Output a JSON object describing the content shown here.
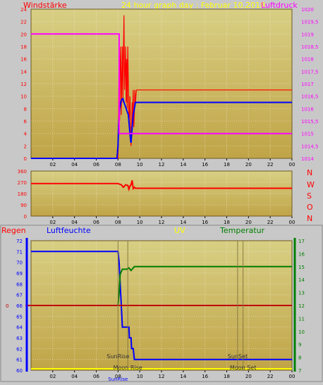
{
  "header": {
    "left_label": "Windstärke",
    "title": "24 hour graph day : Februar 10,2018",
    "right_label": "Luftdruck"
  },
  "direction_labels": [
    "N",
    "W",
    "S",
    "O",
    "N"
  ],
  "bottom_header": {
    "regen": "Regen",
    "luftfeuchte": "Luftfeuchte",
    "uv": "UV",
    "temperatur": "Temperatur"
  },
  "annotations": {
    "sunrise": "SunRise",
    "moonrise": "Moon Rise",
    "sunset": "SunSet",
    "moonset": "Moon Set",
    "sunrise_bottom": "SunRise"
  },
  "colors": {
    "panel_top": "#c0a447",
    "panel_bottom": "#d8cf84",
    "wind": "#ff0000",
    "gust": "#0000ff",
    "pressure": "#ff00ff",
    "direction": "#ff0000",
    "humidity": "#0000ff",
    "temperature": "#007f00",
    "rain": "#bf0000",
    "uv": "#ffff00"
  },
  "chart_data": [
    {
      "type": "line",
      "title": "24 hour graph day : Februar 10,2018",
      "xlabel": "",
      "xlim": [
        0,
        24
      ],
      "xticks": [
        "02",
        "04",
        "06",
        "08",
        "10",
        "12",
        "14",
        "16",
        "18",
        "20",
        "22",
        "00"
      ],
      "ylabel": "Windstärke",
      "ylim": [
        0,
        24
      ],
      "yticks": [
        "0",
        "2",
        "4",
        "6",
        "8",
        "10",
        "12",
        "14",
        "16",
        "18",
        "20",
        "22",
        "24"
      ],
      "y2label": "Luftdruck",
      "y2lim": [
        1014,
        1020
      ],
      "y2ticks": [
        "1014",
        "1014,5",
        "1015",
        "1015,5",
        "1016",
        "1016,5",
        "1017",
        "1017,5",
        "1018",
        "1018,5",
        "1019",
        "1019,5",
        "1020"
      ],
      "series": [
        {
          "axis": "left",
          "color": "#ff0000",
          "points": [
            [
              0,
              0
            ],
            [
              8.0,
              0
            ],
            [
              8.05,
              7
            ],
            [
              8.1,
              18
            ],
            [
              8.15,
              6
            ],
            [
              8.2,
              15
            ],
            [
              8.25,
              18
            ],
            [
              8.3,
              7
            ],
            [
              8.35,
              13
            ],
            [
              8.4,
              18
            ],
            [
              8.45,
              9
            ],
            [
              8.5,
              17
            ],
            [
              8.55,
              23
            ],
            [
              8.6,
              11
            ],
            [
              8.65,
              14
            ],
            [
              8.7,
              18
            ],
            [
              8.75,
              9
            ],
            [
              8.8,
              16
            ],
            [
              8.85,
              8
            ],
            [
              8.9,
              18
            ],
            [
              8.95,
              12
            ],
            [
              9.0,
              6
            ],
            [
              9.05,
              7
            ],
            [
              9.1,
              10
            ],
            [
              9.15,
              5
            ],
            [
              9.2,
              2
            ],
            [
              9.25,
              4
            ],
            [
              9.3,
              9
            ],
            [
              9.35,
              6
            ],
            [
              9.4,
              11
            ],
            [
              9.45,
              5
            ],
            [
              9.5,
              7
            ],
            [
              9.55,
              11
            ],
            [
              9.6,
              9
            ],
            [
              9.7,
              11
            ],
            [
              24,
              11
            ]
          ]
        },
        {
          "axis": "left",
          "color": "#0000ff",
          "points": [
            [
              0,
              0
            ],
            [
              7.9,
              0
            ],
            [
              8.0,
              2
            ],
            [
              8.05,
              5
            ],
            [
              8.15,
              8
            ],
            [
              8.25,
              9
            ],
            [
              8.35,
              9.5
            ],
            [
              8.45,
              9.6
            ],
            [
              8.55,
              9
            ],
            [
              8.65,
              8.5
            ],
            [
              8.75,
              8
            ],
            [
              8.85,
              7.5
            ],
            [
              8.95,
              7
            ],
            [
              9.05,
              5
            ],
            [
              9.15,
              3
            ],
            [
              9.2,
              2.5
            ],
            [
              9.3,
              5
            ],
            [
              9.4,
              7
            ],
            [
              9.5,
              8
            ],
            [
              9.6,
              9
            ],
            [
              24,
              9
            ]
          ]
        },
        {
          "axis": "right",
          "color": "#ff00ff",
          "points": [
            [
              0,
              1019
            ],
            [
              8.1,
              1019
            ],
            [
              8.1,
              1015
            ],
            [
              24,
              1015
            ]
          ]
        }
      ]
    },
    {
      "type": "line",
      "xlim": [
        0,
        24
      ],
      "xticks": [
        "02",
        "04",
        "06",
        "08",
        "10",
        "12",
        "14",
        "16",
        "18",
        "20",
        "22",
        "00"
      ],
      "ylim": [
        0,
        360
      ],
      "yticks": [
        "0",
        "90",
        "180",
        "270",
        "360"
      ],
      "series": [
        {
          "color": "#ff0000",
          "points": [
            [
              0,
              260
            ],
            [
              8.0,
              260
            ],
            [
              8.3,
              250
            ],
            [
              8.5,
              230
            ],
            [
              8.7,
              250
            ],
            [
              8.9,
              245
            ],
            [
              9.0,
              215
            ],
            [
              9.1,
              240
            ],
            [
              9.2,
              250
            ],
            [
              9.3,
              285
            ],
            [
              9.4,
              220
            ],
            [
              9.5,
              230
            ],
            [
              9.6,
              222
            ],
            [
              24,
              222
            ]
          ]
        }
      ]
    },
    {
      "type": "line",
      "xlim": [
        0,
        24
      ],
      "xticks": [
        "02",
        "04",
        "06",
        "08",
        "10",
        "12",
        "14",
        "16",
        "18",
        "20",
        "22",
        "00"
      ],
      "ylim": [
        60,
        72
      ],
      "yticks": [
        "60",
        "61",
        "62",
        "63",
        "64",
        "65",
        "66",
        "67",
        "68",
        "69",
        "70",
        "71",
        "72"
      ],
      "y2lim": [
        7,
        17
      ],
      "y2ticks": [
        "7",
        "8",
        "9",
        "10",
        "11",
        "12",
        "13",
        "14",
        "15",
        "16",
        "17"
      ],
      "rain_ticks": [
        "0"
      ],
      "series": [
        {
          "name": "Luftfeuchte",
          "axis": "left",
          "color": "#0000ff",
          "points": [
            [
              0,
              71
            ],
            [
              8.0,
              71
            ],
            [
              8.1,
              70
            ],
            [
              8.2,
              68
            ],
            [
              8.3,
              66
            ],
            [
              8.4,
              64
            ],
            [
              9.0,
              64
            ],
            [
              9.05,
              63
            ],
            [
              9.2,
              63
            ],
            [
              9.25,
              62
            ],
            [
              9.4,
              62
            ],
            [
              9.5,
              61
            ],
            [
              9.6,
              61
            ],
            [
              9.7,
              61
            ],
            [
              24,
              61
            ]
          ]
        },
        {
          "name": "Temperatur",
          "axis": "right",
          "color": "#007f00",
          "points": [
            [
              0,
              12
            ],
            [
              8.0,
              12
            ],
            [
              8.1,
              13
            ],
            [
              8.2,
              14.4
            ],
            [
              8.4,
              14.8
            ],
            [
              8.6,
              14.8
            ],
            [
              8.8,
              14.8
            ],
            [
              9.0,
              14.9
            ],
            [
              9.2,
              14.7
            ],
            [
              9.3,
              14.8
            ],
            [
              9.5,
              15.0
            ],
            [
              24,
              15
            ]
          ]
        },
        {
          "name": "Regen",
          "axis": "rain",
          "color": "#bf0000",
          "points": [
            [
              0,
              0
            ],
            [
              24,
              0
            ]
          ]
        },
        {
          "name": "UV",
          "axis": "uv",
          "color": "#ffff00",
          "points": [
            [
              0,
              0
            ],
            [
              24,
              0
            ]
          ]
        }
      ],
      "events": [
        {
          "label": "SunRise",
          "x": 8.0
        },
        {
          "label": "Moon Rise",
          "x": 8.9
        },
        {
          "label": "SunSet",
          "x": 19.0
        },
        {
          "label": "Moon Set",
          "x": 19.5
        }
      ]
    }
  ]
}
